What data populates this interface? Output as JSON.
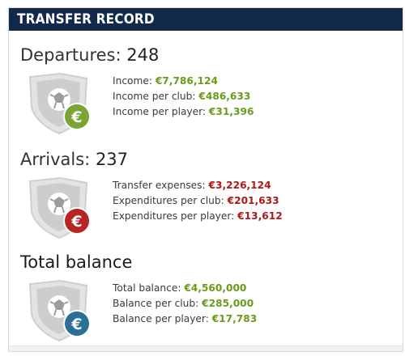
{
  "header": {
    "title": "TRANSFER RECORD"
  },
  "departures": {
    "label": "Departures:",
    "count": "248",
    "coin_color": "#7ba433",
    "rows": [
      {
        "label": "Income:",
        "value": "€7,786,124"
      },
      {
        "label": "Income per club:",
        "value": "€486,633"
      },
      {
        "label": "Income per player:",
        "value": "€31,396"
      }
    ]
  },
  "arrivals": {
    "label": "Arrivals:",
    "count": "237",
    "coin_color": "#b82324",
    "rows": [
      {
        "label": "Transfer expenses:",
        "value": "€3,226,124"
      },
      {
        "label": "Expenditures per club:",
        "value": "€201,633"
      },
      {
        "label": "Expenditures per player:",
        "value": "€13,612"
      }
    ]
  },
  "balance": {
    "label": "Total balance",
    "coin_color": "#2a6f95",
    "rows": [
      {
        "label": "Total balance:",
        "value": "€4,560,000"
      },
      {
        "label": "Balance per club:",
        "value": "€285,000"
      },
      {
        "label": "Balance per player:",
        "value": "€17,783"
      }
    ]
  },
  "icons": {
    "shield": "shield-football-icon",
    "coin": "euro-coin-icon"
  }
}
